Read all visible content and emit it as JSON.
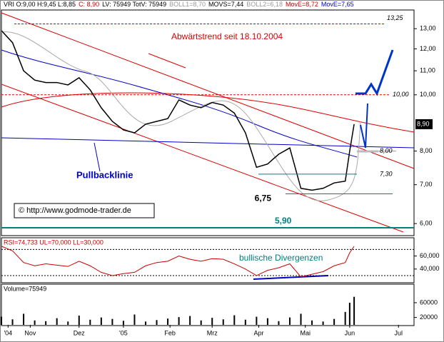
{
  "chart_data": [
    {
      "type": "line",
      "log": true,
      "color": "#000000",
      "header": [
        {
          "text": "VRI O:9,00 H:9,45 L:8,85",
          "color": "#000000"
        },
        {
          "text": "C: 8,90",
          "color": "#cc0000"
        },
        {
          "text": "LV: 75949 TotV: 75949",
          "color": "#000000"
        },
        {
          "text": "BOLL1=8,70",
          "color": "#999999"
        },
        {
          "text": "MOVS=7,44",
          "color": "#000000"
        },
        {
          "text": "BOLL2=6,18",
          "color": "#999999"
        },
        {
          "text": "MovE=8,72",
          "color": "#cc0000"
        },
        {
          "text": "MovE=7,65",
          "color": "#0000cc"
        }
      ],
      "annotations": [
        "Abwärtstrend seit 18.10.2004",
        "Pullbacklinie",
        "© http://www.godmode-trader.de"
      ],
      "levels": [
        {
          "value": 13.25,
          "label": "13,25"
        },
        {
          "value": 10.0,
          "label": "10,00"
        },
        {
          "value": 8.0,
          "label": "8,00"
        },
        {
          "value": 7.3,
          "label": "7,30"
        },
        {
          "value": 6.75,
          "label": "6,75"
        },
        {
          "value": 5.9,
          "label": "5,90"
        }
      ],
      "last": {
        "value": 8.9,
        "label": "8,90"
      },
      "x": [
        0,
        5,
        10,
        15,
        20,
        25,
        30,
        35,
        40,
        45,
        50,
        55,
        60,
        65,
        70,
        75,
        80,
        85,
        90,
        95,
        100,
        105,
        110,
        115,
        120,
        125,
        130,
        135,
        140,
        145,
        150,
        155,
        157,
        159
      ],
      "values": [
        12.9,
        12.3,
        11.0,
        10.6,
        10.5,
        10.5,
        10.4,
        10.7,
        10.2,
        9.5,
        9.0,
        8.7,
        8.6,
        8.9,
        9.0,
        9.1,
        9.8,
        9.6,
        9.5,
        9.7,
        9.6,
        9.3,
        8.6,
        7.5,
        7.6,
        7.9,
        8.1,
        6.9,
        6.85,
        6.9,
        7.05,
        7.1,
        8.0,
        8.9
      ],
      "xlim": [
        0,
        186
      ],
      "ylim": [
        5.72,
        14.0
      ],
      "yticks": [
        {
          "value": 13,
          "label": "13,00"
        },
        {
          "value": 12,
          "label": "12,00"
        },
        {
          "value": 11,
          "label": "11,00"
        },
        {
          "value": 10,
          "label": "10,00"
        },
        {
          "value": 8,
          "label": "8,00"
        },
        {
          "value": 7,
          "label": "7,00"
        },
        {
          "value": 6,
          "label": "6,00"
        }
      ]
    },
    {
      "type": "line",
      "color": "#cc0000",
      "title": "RSI=74,733 UL=70,000 LL=30,000",
      "annotation": "bullische Divergenzen",
      "bands": [
        70,
        30
      ],
      "x": [
        0,
        5,
        10,
        15,
        20,
        25,
        30,
        35,
        40,
        45,
        50,
        55,
        60,
        65,
        70,
        75,
        80,
        85,
        90,
        95,
        100,
        105,
        110,
        115,
        120,
        125,
        130,
        135,
        140,
        145,
        150,
        155,
        157,
        159
      ],
      "values": [
        75,
        68,
        50,
        45,
        48,
        46,
        44,
        52,
        45,
        35,
        30,
        33,
        35,
        45,
        50,
        52,
        60,
        55,
        52,
        56,
        55,
        48,
        40,
        30,
        38,
        42,
        48,
        28,
        32,
        36,
        45,
        50,
        65,
        75
      ],
      "xlim": [
        0,
        186
      ],
      "ylim": [
        19,
        88
      ],
      "yticks": [
        {
          "value": 60,
          "label": "60,000"
        },
        {
          "value": 40,
          "label": "40,000"
        }
      ]
    },
    {
      "type": "bar",
      "color": "#000000",
      "title": "Volume=75949",
      "x": [
        0,
        5,
        10,
        15,
        20,
        25,
        30,
        35,
        40,
        45,
        50,
        55,
        60,
        65,
        70,
        75,
        80,
        85,
        90,
        95,
        100,
        105,
        110,
        115,
        120,
        125,
        130,
        135,
        140,
        145,
        150,
        155,
        157,
        159
      ],
      "values": [
        22000,
        15000,
        30000,
        12000,
        10000,
        18000,
        9000,
        25000,
        14000,
        20000,
        16000,
        11000,
        28000,
        9000,
        13000,
        17000,
        21000,
        24000,
        12000,
        19000,
        15000,
        26000,
        14000,
        22000,
        18000,
        10000,
        20000,
        30000,
        12000,
        9000,
        16000,
        35000,
        60000,
        75949
      ],
      "xlim": [
        0,
        186
      ],
      "ylim": [
        0,
        85000
      ],
      "yticks": [
        20000,
        60000
      ],
      "xticks": [
        {
          "value": 3,
          "label": "'04"
        },
        {
          "value": 13,
          "label": "Nov"
        },
        {
          "value": 35,
          "label": "Dez"
        },
        {
          "value": 55,
          "label": "'05"
        },
        {
          "value": 76,
          "label": "Feb"
        },
        {
          "value": 95,
          "label": "Mrz"
        },
        {
          "value": 116,
          "label": "Apr"
        },
        {
          "value": 137,
          "label": "Mai"
        },
        {
          "value": 157,
          "label": "Jun"
        },
        {
          "value": 179,
          "label": "Jul"
        }
      ]
    }
  ]
}
